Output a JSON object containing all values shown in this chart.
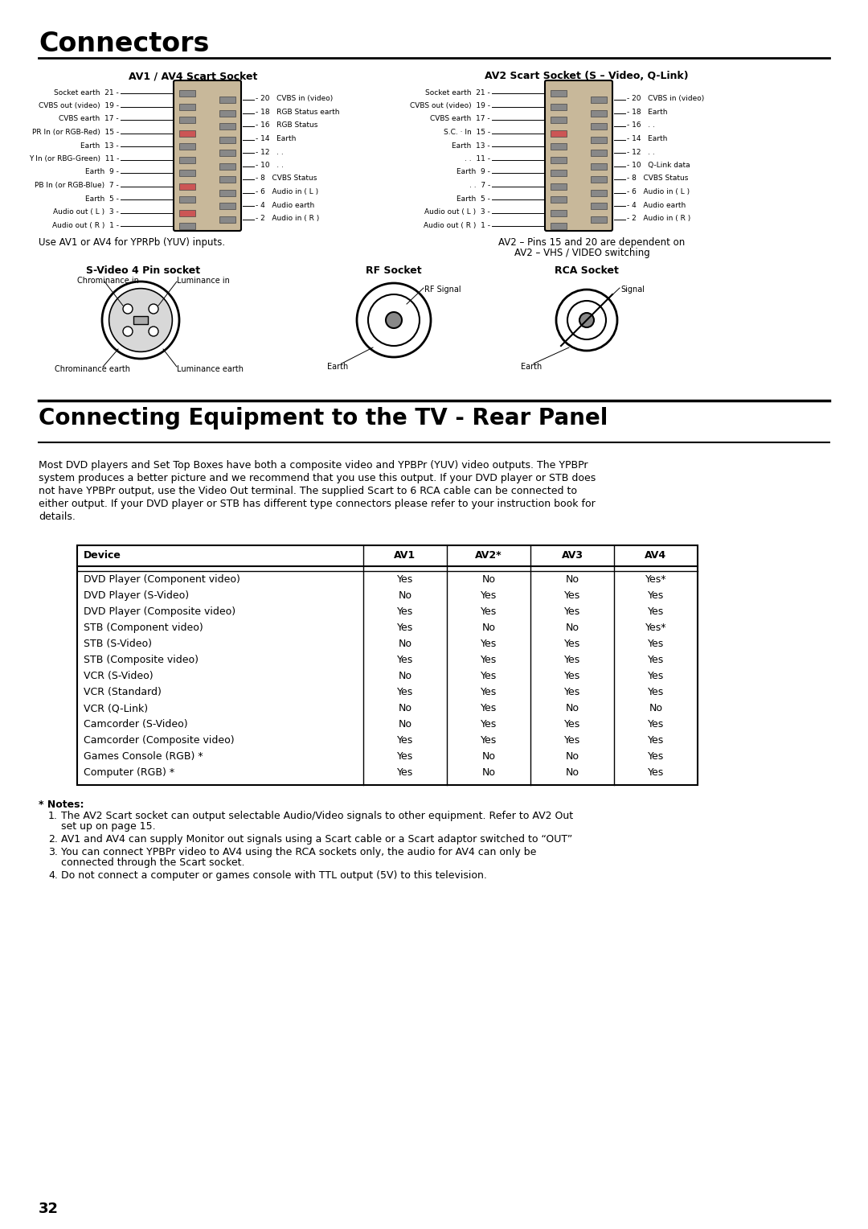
{
  "title1": "Connectors",
  "title2": "Connecting Equipment to the TV - Rear Panel",
  "page_number": "32",
  "av1_title": "AV1 / AV4 Scart Socket",
  "av2_title": "AV2 Scart Socket (S – Video, Q-Link)",
  "av1_left_pins": [
    [
      "Socket earth",
      "21"
    ],
    [
      "CVBS out (video)",
      "19"
    ],
    [
      "CVBS earth",
      "17"
    ],
    [
      "PR In (or RGB-Red)",
      "15"
    ],
    [
      "Earth",
      "13"
    ],
    [
      "Y In (or RBG-Green)",
      "11"
    ],
    [
      "Earth",
      "9"
    ],
    [
      "PB In (or RGB-Blue)",
      "7"
    ],
    [
      "Earth",
      "5"
    ],
    [
      "Audio out ( L )",
      "3"
    ],
    [
      "Audio out ( R )",
      "1"
    ]
  ],
  "av1_right_pins": [
    [
      "20",
      "CVBS in (video)"
    ],
    [
      "18",
      "RGB Status earth"
    ],
    [
      "16",
      "RGB Status"
    ],
    [
      "14",
      "Earth"
    ],
    [
      "12",
      ". ."
    ],
    [
      "10",
      ". ."
    ],
    [
      "8",
      "CVBS Status"
    ],
    [
      "6",
      "Audio in ( L )"
    ],
    [
      "4",
      "Audio earth"
    ],
    [
      "2",
      "Audio in ( R )"
    ]
  ],
  "av2_left_pins": [
    [
      "Socket earth",
      "21"
    ],
    [
      "CVBS out (video)",
      "19"
    ],
    [
      "CVBS earth",
      "17"
    ],
    [
      "S.C. · In",
      "15"
    ],
    [
      "Earth",
      "13"
    ],
    [
      ". .",
      "11"
    ],
    [
      "Earth",
      "9"
    ],
    [
      ". .",
      "7"
    ],
    [
      "Earth",
      "5"
    ],
    [
      "Audio out ( L )",
      "3"
    ],
    [
      "Audio out ( R )",
      "1"
    ]
  ],
  "av2_right_pins": [
    [
      "20",
      "CVBS in (video)"
    ],
    [
      "18",
      "Earth"
    ],
    [
      "16",
      ". ."
    ],
    [
      "14",
      "Earth"
    ],
    [
      "12",
      ". ."
    ],
    [
      "10",
      "Q-Link data"
    ],
    [
      "8",
      "CVBS Status"
    ],
    [
      "6",
      "Audio in ( L )"
    ],
    [
      "4",
      "Audio earth"
    ],
    [
      "2",
      "Audio in ( R )"
    ]
  ],
  "av1_note": "Use AV1 or AV4 for YPRPb (YUV) inputs.",
  "av2_note_line1": "AV2 – Pins 15 and 20 are dependent on",
  "av2_note_line2": "AV2 – VHS / VIDEO switching",
  "svideo_title": "S-Video 4 Pin socket",
  "rf_title": "RF Socket",
  "rca_title": "RCA Socket",
  "intro_text_lines": [
    "Most DVD players and Set Top Boxes have both a composite video and YPBPr (YUV) video outputs. The YPBPr",
    "system produces a better picture and we recommend that you use this output. If your DVD player or STB does",
    "not have YPBPr output, use the Video Out terminal. The supplied Scart to 6 RCA cable can be connected to",
    "either output. If your DVD player or STB has different type connectors please refer to your instruction book for",
    "details."
  ],
  "table_headers": [
    "Device",
    "AV1",
    "AV2*",
    "AV3",
    "AV4"
  ],
  "table_rows": [
    [
      "DVD Player (Component video)",
      "Yes",
      "No",
      "No",
      "Yes*"
    ],
    [
      "DVD Player (S-Video)",
      "No",
      "Yes",
      "Yes",
      "Yes"
    ],
    [
      "DVD Player (Composite video)",
      "Yes",
      "Yes",
      "Yes",
      "Yes"
    ],
    [
      "STB (Component video)",
      "Yes",
      "No",
      "No",
      "Yes*"
    ],
    [
      "STB (S-Video)",
      "No",
      "Yes",
      "Yes",
      "Yes"
    ],
    [
      "STB (Composite video)",
      "Yes",
      "Yes",
      "Yes",
      "Yes"
    ],
    [
      "VCR (S-Video)",
      "No",
      "Yes",
      "Yes",
      "Yes"
    ],
    [
      "VCR (Standard)",
      "Yes",
      "Yes",
      "Yes",
      "Yes"
    ],
    [
      "VCR (Q-Link)",
      "No",
      "Yes",
      "No",
      "No"
    ],
    [
      "Camcorder (S-Video)",
      "No",
      "Yes",
      "Yes",
      "Yes"
    ],
    [
      "Camcorder (Composite video)",
      "Yes",
      "Yes",
      "Yes",
      "Yes"
    ],
    [
      "Games Console (RGB) *",
      "Yes",
      "No",
      "No",
      "Yes"
    ],
    [
      "Computer (RGB) *",
      "Yes",
      "No",
      "No",
      "Yes"
    ]
  ],
  "notes_title": "* Notes:",
  "notes": [
    [
      "The AV2 Scart socket can output selectable Audio/Video signals to other equipment. Refer to AV2 Out",
      "set up on page 15."
    ],
    [
      "AV1 and AV4 can supply Monitor out signals using a Scart cable or a Scart adaptor switched to “OUT”"
    ],
    [
      "You can connect YPBPr video to AV4 using the RCA sockets only, the audio for AV4 can only be",
      "connected through the Scart socket."
    ],
    [
      "Do not connect a computer or games console with TTL output (5V) to this television."
    ]
  ],
  "bg_color": "#ffffff"
}
